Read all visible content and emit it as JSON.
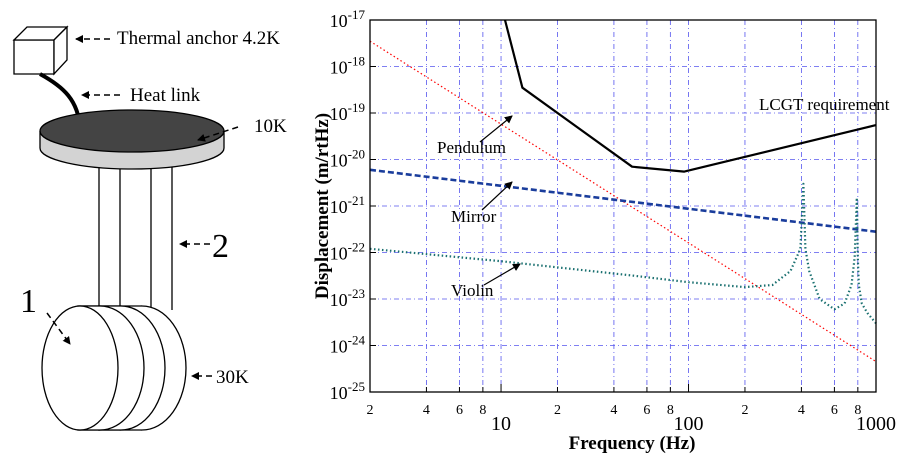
{
  "diagram": {
    "labels": {
      "anchor": "Thermal anchor 4.2K",
      "heat_link": "Heat link",
      "platform_temp": "10K",
      "wire": "2",
      "mirror": "1",
      "mirror_temp": "30K"
    }
  },
  "chart_data": {
    "type": "line",
    "xlabel": "Frequency (Hz)",
    "ylabel": "Displacement (m/rtHz)",
    "xscale": "log",
    "yscale": "log",
    "xlim": [
      2,
      1000
    ],
    "ylim": [
      1e-25,
      1e-17
    ],
    "grid": true,
    "x_tick_labels": [
      {
        "v": 2,
        "t": "2",
        "major": false
      },
      {
        "v": 4,
        "t": "4",
        "major": false
      },
      {
        "v": 6,
        "t": "6",
        "major": false
      },
      {
        "v": 8,
        "t": "8",
        "major": false
      },
      {
        "v": 10,
        "t": "10",
        "major": true
      },
      {
        "v": 20,
        "t": "2",
        "major": false
      },
      {
        "v": 40,
        "t": "4",
        "major": false
      },
      {
        "v": 60,
        "t": "6",
        "major": false
      },
      {
        "v": 80,
        "t": "8",
        "major": false
      },
      {
        "v": 100,
        "t": "100",
        "major": true
      },
      {
        "v": 200,
        "t": "2",
        "major": false
      },
      {
        "v": 400,
        "t": "4",
        "major": false
      },
      {
        "v": 600,
        "t": "6",
        "major": false
      },
      {
        "v": 800,
        "t": "8",
        "major": false
      },
      {
        "v": 1000,
        "t": "1000",
        "major": true
      }
    ],
    "y_tick_exponents": [
      -17,
      -18,
      -19,
      -20,
      -21,
      -22,
      -23,
      -24,
      -25
    ],
    "y_tick_base": "10",
    "series": [
      {
        "name": "LCGT requirement",
        "color": "#000000",
        "style": "solid",
        "x": [
          10.5,
          13,
          50,
          95,
          1000
        ],
        "y": [
          1e-17,
          3.5e-19,
          7e-21,
          5.5e-21,
          5.5e-20
        ]
      },
      {
        "name": "Pendulum",
        "color": "#ff0000",
        "style": "dotted",
        "x": [
          2,
          1000
        ],
        "y": [
          3.5e-18,
          4.5e-25
        ]
      },
      {
        "name": "Mirror",
        "color": "#1a3d9c",
        "style": "dashed",
        "x": [
          2,
          1000
        ],
        "y": [
          6e-21,
          2.8e-22
        ]
      },
      {
        "name": "Violin",
        "color": "#1a7070",
        "style": "dotted",
        "x": [
          2,
          10,
          50,
          100,
          200,
          280,
          350,
          395,
          410,
          420,
          440,
          500,
          600,
          680,
          740,
          770,
          790,
          800,
          810,
          840,
          900,
          1000
        ],
        "y": [
          1.2e-22,
          6.5e-23,
          3.2e-23,
          2.3e-23,
          1.8e-23,
          2e-23,
          4e-23,
          1.2e-22,
          3e-21,
          1.2e-22,
          4e-23,
          1e-23,
          6e-24,
          8e-24,
          2e-23,
          8e-23,
          1.5e-21,
          8e-23,
          2e-23,
          8e-24,
          5e-24,
          3e-24
        ]
      }
    ]
  }
}
